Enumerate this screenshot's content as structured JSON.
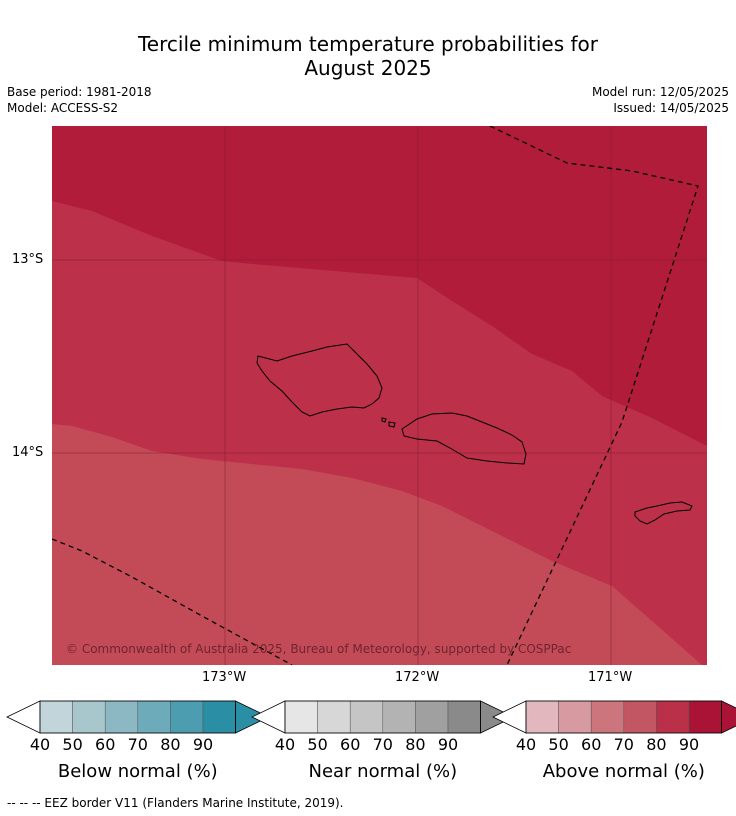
{
  "title": {
    "line1": "Tercile minimum temperature probabilities for",
    "line2": "August 2025"
  },
  "meta": {
    "base_period": "Base period: 1981-2018",
    "model": "Model: ACCESS-S2",
    "model_run": "Model run: 12/05/2025",
    "issued": "Issued: 14/05/2025"
  },
  "map": {
    "copyright": "© Commonwealth of Australia 2025, Bureau of Meteorology, supported by COSPPac",
    "lat_labels": [
      "13°S",
      "14°S"
    ],
    "lon_labels": [
      "173°W",
      "172°W",
      "171°W"
    ],
    "colors": {
      "above_90": "#b11c3a",
      "above_80": "#bc3049",
      "above_70": "#c34b57"
    }
  },
  "colorbars": [
    {
      "name": "below",
      "title": "Below normal (%)",
      "ticks": [
        "40",
        "50",
        "60",
        "70",
        "80",
        "90"
      ],
      "colors": [
        "#c2d5db",
        "#a8c7cd",
        "#8bb8c3",
        "#6dabbb",
        "#4c9daf",
        "#2a8ea4"
      ]
    },
    {
      "name": "near",
      "title": "Near normal (%)",
      "ticks": [
        "40",
        "50",
        "60",
        "70",
        "80",
        "90"
      ],
      "colors": [
        "#e6e6e6",
        "#d7d7d7",
        "#c5c5c5",
        "#b3b3b3",
        "#a0a0a0",
        "#8a8a8a"
      ]
    },
    {
      "name": "above",
      "title": "Above normal (%)",
      "ticks": [
        "40",
        "50",
        "60",
        "70",
        "80",
        "90"
      ],
      "colors": [
        "#e2b8be",
        "#d79aa0",
        "#cd757c",
        "#c25663",
        "#bb3049",
        "#ab1336"
      ]
    }
  ],
  "footer": "--  --  -- EEZ border V11 (Flanders Marine Institute, 2019)."
}
